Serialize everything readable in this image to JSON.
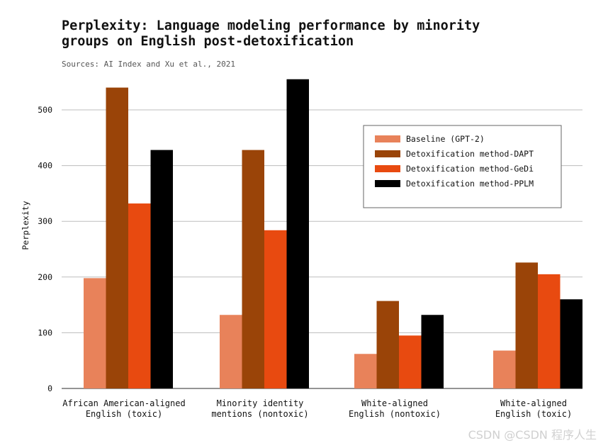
{
  "watermark": "CSDN @CSDN 程序人生",
  "chart_data": {
    "type": "bar",
    "title": "Perplexity: Language modeling performance by minority groups on English post-detoxification",
    "subtitle": "Sources: AI Index and Xu et al., 2021",
    "ylabel": "Perplexity",
    "xlabel": "",
    "ylim": [
      0,
      560
    ],
    "yticks": [
      0,
      100,
      200,
      300,
      400,
      500
    ],
    "grid": true,
    "legend_position": "top-right",
    "categories": [
      [
        "African American-aligned",
        "English (toxic)"
      ],
      [
        "Minority identity",
        "mentions (nontoxic)"
      ],
      [
        "White-aligned",
        "English (nontoxic)"
      ],
      [
        "White-aligned",
        "English (toxic)"
      ]
    ],
    "series": [
      {
        "name": "Baseline (GPT-2)",
        "color": "#e8825a",
        "values": [
          198,
          132,
          62,
          68
        ]
      },
      {
        "name": "Detoxification method-DAPT",
        "color": "#9a4408",
        "values": [
          540,
          428,
          157,
          226
        ]
      },
      {
        "name": "Detoxification method-GeDi",
        "color": "#e84a10",
        "values": [
          332,
          284,
          95,
          205
        ]
      },
      {
        "name": "Detoxification method-PPLM",
        "color": "#000000",
        "values": [
          428,
          555,
          132,
          160
        ]
      }
    ]
  }
}
